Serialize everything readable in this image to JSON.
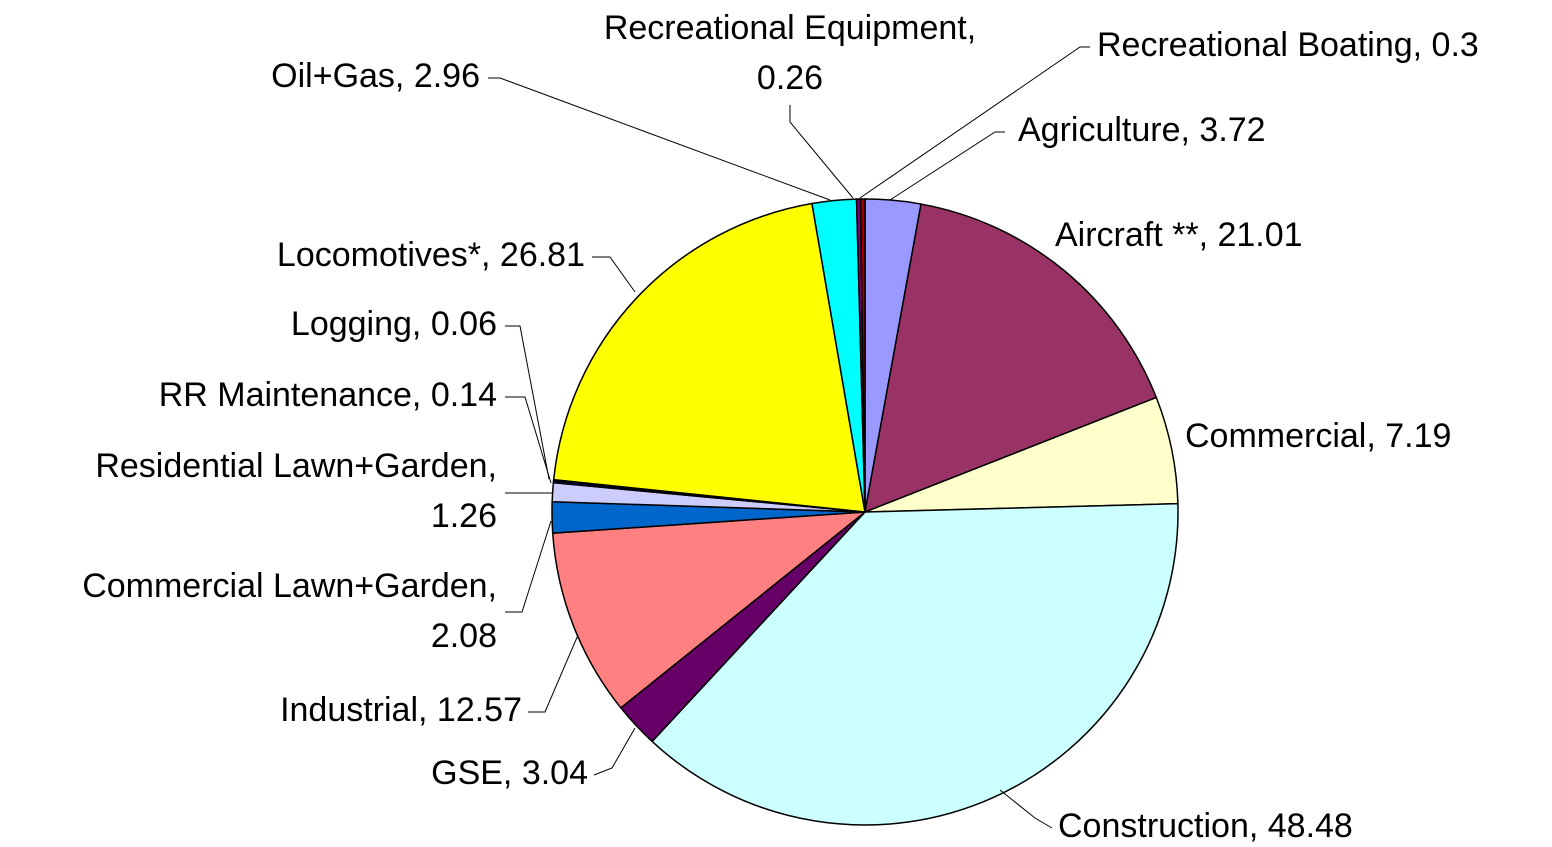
{
  "chart_data": {
    "type": "pie",
    "values": [
      3.72,
      21.01,
      7.19,
      48.48,
      3.04,
      12.57,
      2.08,
      1.26,
      0.14,
      0.06,
      26.81,
      2.96,
      0.26,
      0.3
    ],
    "value_labels": [
      "Agriculture, 3.72",
      "Aircraft **, 21.01",
      "Commercial, 7.19",
      "Construction, 48.48",
      "GSE, 3.04",
      "Industrial, 12.57",
      "Commercial Lawn+Garden,\n2.08",
      "Residential Lawn+Garden,\n1.26",
      "RR Maintenance, 0.14",
      "Logging, 0.06",
      "Locomotives*, 26.81",
      "Oil+Gas, 2.96",
      "Recreational Equipment,\n0.26",
      "Recreational Boating, 0.3"
    ],
    "colors": [
      "#9999ff",
      "#993366",
      "#ffffcc",
      "#ccffff",
      "#660066",
      "#ff8080",
      "#0066cc",
      "#ccccff",
      "#000080",
      "#ff00ff",
      "#ffff00",
      "#00ffff",
      "#800080",
      "#990000"
    ]
  }
}
